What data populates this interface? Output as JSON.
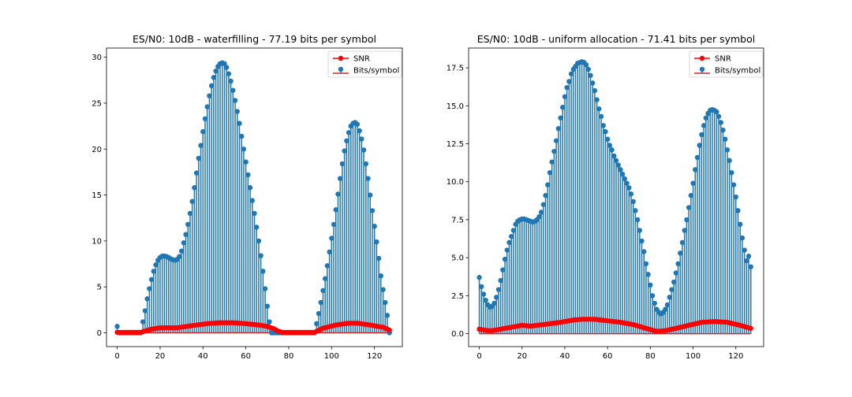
{
  "colors": {
    "stem": "#1f77b4",
    "snr": "#ff0000",
    "baseline": "#d62728"
  },
  "chart_data": [
    {
      "type": "stem",
      "title": "ES/N0: 10dB - waterfilling - 77.19 bits per symbol",
      "xlim": [
        -5,
        133
      ],
      "ylim": [
        -1.5,
        31
      ],
      "xticks": [
        0,
        20,
        40,
        60,
        80,
        100,
        120
      ],
      "yticks": [
        0,
        5,
        10,
        15,
        20,
        25,
        30
      ],
      "ytick_labels": [
        "0",
        "5",
        "10",
        "15",
        "20",
        "25",
        "30"
      ],
      "legend": {
        "position": "top-right",
        "entries": [
          "SNR",
          "Bits/symbol"
        ]
      },
      "bits_anchors": [
        [
          0,
          0.7
        ],
        [
          1,
          0
        ],
        [
          11,
          0
        ],
        [
          12,
          1.2
        ],
        [
          13,
          2.4
        ],
        [
          14,
          3.7
        ],
        [
          15,
          4.8
        ],
        [
          16,
          5.8
        ],
        [
          17,
          6.7
        ],
        [
          18,
          7.4
        ],
        [
          19,
          7.9
        ],
        [
          20,
          8.2
        ],
        [
          21,
          8.35
        ],
        [
          22,
          8.35
        ],
        [
          23,
          8.3
        ],
        [
          24,
          8.2
        ],
        [
          25,
          8.05
        ],
        [
          26,
          7.95
        ],
        [
          27,
          7.9
        ],
        [
          28,
          8.0
        ],
        [
          29,
          8.3
        ],
        [
          30,
          8.9
        ],
        [
          31,
          9.8
        ],
        [
          32,
          10.7
        ],
        [
          33,
          11.8
        ],
        [
          34,
          13.0
        ],
        [
          35,
          14.3
        ],
        [
          36,
          15.8
        ],
        [
          37,
          17.4
        ],
        [
          38,
          19.0
        ],
        [
          39,
          20.4
        ],
        [
          40,
          21.9
        ],
        [
          41,
          23.3
        ],
        [
          42,
          24.6
        ],
        [
          43,
          25.8
        ],
        [
          44,
          26.9
        ],
        [
          45,
          27.8
        ],
        [
          46,
          28.5
        ],
        [
          47,
          29.0
        ],
        [
          48,
          29.3
        ],
        [
          49,
          29.4
        ],
        [
          50,
          29.3
        ],
        [
          51,
          28.9
        ],
        [
          52,
          28.2
        ],
        [
          53,
          27.4
        ],
        [
          54,
          26.4
        ],
        [
          55,
          25.3
        ],
        [
          56,
          24.1
        ],
        [
          57,
          22.8
        ],
        [
          58,
          21.4
        ],
        [
          59,
          20.0
        ],
        [
          60,
          18.6
        ],
        [
          61,
          17.2
        ],
        [
          62,
          15.8
        ],
        [
          63,
          14.4
        ],
        [
          64,
          13.0
        ],
        [
          65,
          11.5
        ],
        [
          66,
          10.0
        ],
        [
          67,
          8.4
        ],
        [
          68,
          6.7
        ],
        [
          69,
          4.8
        ],
        [
          70,
          2.9
        ],
        [
          71,
          1.2
        ],
        [
          72,
          0
        ],
        [
          92,
          0
        ],
        [
          93,
          1.0
        ],
        [
          94,
          2.1
        ],
        [
          95,
          3.3
        ],
        [
          96,
          4.6
        ],
        [
          97,
          5.9
        ],
        [
          98,
          7.3
        ],
        [
          99,
          8.8
        ],
        [
          100,
          10.3
        ],
        [
          101,
          11.8
        ],
        [
          102,
          13.4
        ],
        [
          103,
          15.1
        ],
        [
          104,
          16.8
        ],
        [
          105,
          18.4
        ],
        [
          106,
          19.8
        ],
        [
          107,
          20.9
        ],
        [
          108,
          21.8
        ],
        [
          109,
          22.5
        ],
        [
          110,
          22.8
        ],
        [
          111,
          22.9
        ],
        [
          112,
          22.7
        ],
        [
          113,
          22.0
        ],
        [
          114,
          21.1
        ],
        [
          115,
          19.9
        ],
        [
          116,
          18.4
        ],
        [
          117,
          16.8
        ],
        [
          118,
          15.0
        ],
        [
          119,
          13.3
        ],
        [
          120,
          11.6
        ],
        [
          121,
          9.9
        ],
        [
          122,
          8.1
        ],
        [
          123,
          6.2
        ],
        [
          124,
          4.7
        ],
        [
          125,
          3.3
        ],
        [
          126,
          1.9
        ],
        [
          127,
          0
        ]
      ],
      "snr_anchors": [
        [
          0,
          0.05
        ],
        [
          11,
          0.05
        ],
        [
          16,
          0.4
        ],
        [
          20,
          0.55
        ],
        [
          28,
          0.55
        ],
        [
          34,
          0.75
        ],
        [
          42,
          1.0
        ],
        [
          48,
          1.1
        ],
        [
          54,
          1.1
        ],
        [
          60,
          1.0
        ],
        [
          66,
          0.85
        ],
        [
          70,
          0.7
        ],
        [
          73,
          0.45
        ],
        [
          75,
          0.2
        ],
        [
          77,
          0.05
        ],
        [
          92,
          0.05
        ],
        [
          96,
          0.5
        ],
        [
          102,
          0.85
        ],
        [
          108,
          1.05
        ],
        [
          112,
          1.05
        ],
        [
          118,
          0.85
        ],
        [
          124,
          0.6
        ],
        [
          127,
          0.3
        ]
      ]
    },
    {
      "type": "stem",
      "title": "ES/N0: 10dB - uniform allocation  - 71.41 bits per symbol",
      "xlim": [
        -5,
        133
      ],
      "ylim": [
        -0.85,
        18.8
      ],
      "xticks": [
        0,
        20,
        40,
        60,
        80,
        100,
        120
      ],
      "yticks": [
        0,
        2.5,
        5,
        7.5,
        10,
        12.5,
        15,
        17.5
      ],
      "ytick_labels": [
        "0.0",
        "2.5",
        "5.0",
        "7.5",
        "10.0",
        "12.5",
        "15.0",
        "17.5"
      ],
      "legend": {
        "position": "top-right",
        "entries": [
          "SNR",
          "Bits/symbol"
        ]
      },
      "bits_anchors": [
        [
          0,
          3.7
        ],
        [
          1,
          3.1
        ],
        [
          2,
          2.6
        ],
        [
          3,
          2.2
        ],
        [
          4,
          1.9
        ],
        [
          5,
          1.75
        ],
        [
          6,
          1.8
        ],
        [
          7,
          2.0
        ],
        [
          8,
          2.4
        ],
        [
          9,
          2.9
        ],
        [
          10,
          3.5
        ],
        [
          11,
          4.2
        ],
        [
          12,
          4.9
        ],
        [
          13,
          5.5
        ],
        [
          14,
          6.0
        ],
        [
          15,
          6.4
        ],
        [
          16,
          6.8
        ],
        [
          17,
          7.2
        ],
        [
          18,
          7.4
        ],
        [
          19,
          7.5
        ],
        [
          20,
          7.55
        ],
        [
          21,
          7.55
        ],
        [
          22,
          7.5
        ],
        [
          23,
          7.45
        ],
        [
          24,
          7.4
        ],
        [
          25,
          7.35
        ],
        [
          26,
          7.4
        ],
        [
          27,
          7.5
        ],
        [
          28,
          7.7
        ],
        [
          29,
          8.0
        ],
        [
          30,
          8.5
        ],
        [
          31,
          9.1
        ],
        [
          32,
          9.8
        ],
        [
          33,
          10.6
        ],
        [
          34,
          11.3
        ],
        [
          35,
          12.0
        ],
        [
          36,
          12.7
        ],
        [
          37,
          13.5
        ],
        [
          38,
          14.2
        ],
        [
          39,
          14.9
        ],
        [
          40,
          15.6
        ],
        [
          41,
          16.2
        ],
        [
          42,
          16.6
        ],
        [
          43,
          17.1
        ],
        [
          44,
          17.4
        ],
        [
          45,
          17.6
        ],
        [
          46,
          17.8
        ],
        [
          47,
          17.85
        ],
        [
          48,
          17.9
        ],
        [
          49,
          17.85
        ],
        [
          50,
          17.7
        ],
        [
          51,
          17.4
        ],
        [
          52,
          17.0
        ],
        [
          53,
          16.5
        ],
        [
          54,
          16.0
        ],
        [
          55,
          15.4
        ],
        [
          56,
          14.8
        ],
        [
          57,
          14.3
        ],
        [
          58,
          13.7
        ],
        [
          59,
          13.3
        ],
        [
          60,
          12.8
        ],
        [
          61,
          12.4
        ],
        [
          62,
          12.1
        ],
        [
          63,
          11.7
        ],
        [
          64,
          11.4
        ],
        [
          65,
          11.1
        ],
        [
          66,
          10.8
        ],
        [
          67,
          10.5
        ],
        [
          68,
          10.2
        ],
        [
          69,
          9.9
        ],
        [
          70,
          9.6
        ],
        [
          71,
          9.2
        ],
        [
          72,
          8.7
        ],
        [
          73,
          8.1
        ],
        [
          74,
          7.5
        ],
        [
          75,
          6.8
        ],
        [
          76,
          6.1
        ],
        [
          77,
          5.4
        ],
        [
          78,
          4.6
        ],
        [
          79,
          3.9
        ],
        [
          80,
          3.2
        ],
        [
          81,
          2.5
        ],
        [
          82,
          2.0
        ],
        [
          83,
          1.6
        ],
        [
          84,
          1.4
        ],
        [
          85,
          1.3
        ],
        [
          86,
          1.4
        ],
        [
          87,
          1.6
        ],
        [
          88,
          1.9
        ],
        [
          89,
          2.4
        ],
        [
          90,
          2.9
        ],
        [
          91,
          3.4
        ],
        [
          92,
          4.0
        ],
        [
          93,
          4.6
        ],
        [
          94,
          5.3
        ],
        [
          95,
          6.0
        ],
        [
          96,
          6.8
        ],
        [
          97,
          7.5
        ],
        [
          98,
          8.3
        ],
        [
          99,
          9.1
        ],
        [
          100,
          9.9
        ],
        [
          101,
          10.8
        ],
        [
          102,
          11.6
        ],
        [
          103,
          12.4
        ],
        [
          104,
          13.1
        ],
        [
          105,
          13.7
        ],
        [
          106,
          14.2
        ],
        [
          107,
          14.5
        ],
        [
          108,
          14.7
        ],
        [
          109,
          14.75
        ],
        [
          110,
          14.7
        ],
        [
          111,
          14.6
        ],
        [
          112,
          14.3
        ],
        [
          113,
          13.9
        ],
        [
          114,
          13.4
        ],
        [
          115,
          12.8
        ],
        [
          116,
          12.1
        ],
        [
          117,
          11.4
        ],
        [
          118,
          10.6
        ],
        [
          119,
          9.8
        ],
        [
          120,
          9.0
        ],
        [
          121,
          8.1
        ],
        [
          122,
          7.2
        ],
        [
          123,
          6.3
        ],
        [
          124,
          5.5
        ],
        [
          125,
          4.8
        ],
        [
          126,
          5.1
        ],
        [
          127,
          4.4
        ]
      ],
      "snr_anchors": [
        [
          0,
          0.3
        ],
        [
          4,
          0.2
        ],
        [
          6,
          0.2
        ],
        [
          10,
          0.3
        ],
        [
          16,
          0.45
        ],
        [
          20,
          0.55
        ],
        [
          24,
          0.5
        ],
        [
          30,
          0.6
        ],
        [
          38,
          0.75
        ],
        [
          44,
          0.9
        ],
        [
          48,
          0.95
        ],
        [
          54,
          0.95
        ],
        [
          60,
          0.85
        ],
        [
          66,
          0.75
        ],
        [
          72,
          0.6
        ],
        [
          78,
          0.35
        ],
        [
          83,
          0.15
        ],
        [
          87,
          0.2
        ],
        [
          92,
          0.35
        ],
        [
          98,
          0.55
        ],
        [
          104,
          0.75
        ],
        [
          110,
          0.8
        ],
        [
          116,
          0.75
        ],
        [
          122,
          0.55
        ],
        [
          127,
          0.35
        ]
      ]
    }
  ]
}
